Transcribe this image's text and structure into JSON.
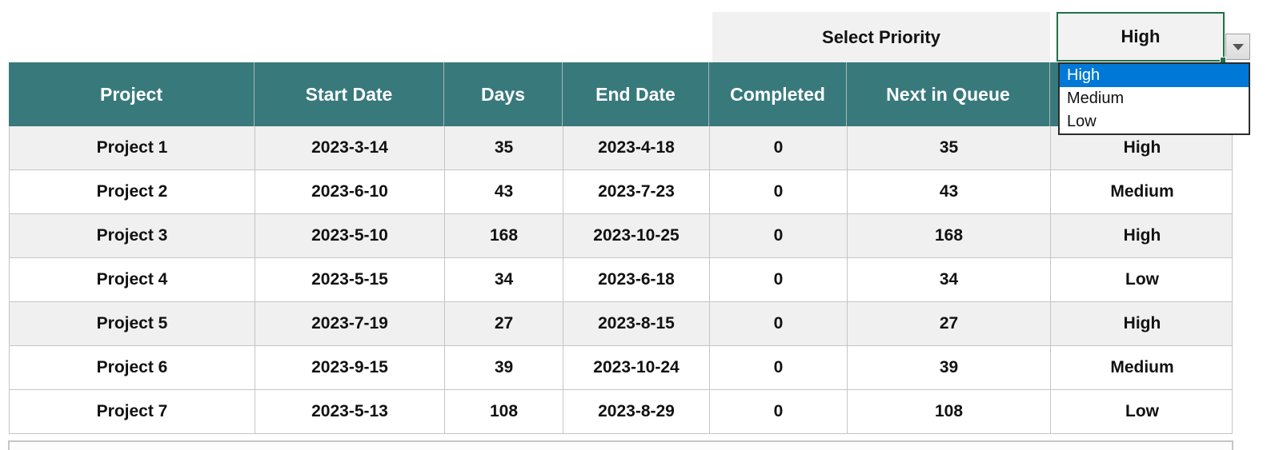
{
  "priority_selector": {
    "label": "Select Priority",
    "selected_value": "High",
    "options": [
      "High",
      "Medium",
      "Low"
    ],
    "highlighted_option": "High"
  },
  "table": {
    "columns": [
      "Project",
      "Start Date",
      "Days",
      "End Date",
      "Completed",
      "Next in Queue",
      ""
    ],
    "rows": [
      [
        "Project 1",
        "2023-3-14",
        "35",
        "2023-4-18",
        "0",
        "35",
        "High"
      ],
      [
        "Project 2",
        "2023-6-10",
        "43",
        "2023-7-23",
        "0",
        "43",
        "Medium"
      ],
      [
        "Project 3",
        "2023-5-10",
        "168",
        "2023-10-25",
        "0",
        "168",
        "High"
      ],
      [
        "Project 4",
        "2023-5-15",
        "34",
        "2023-6-18",
        "0",
        "34",
        "Low"
      ],
      [
        "Project 5",
        "2023-7-19",
        "27",
        "2023-8-15",
        "0",
        "27",
        "High"
      ],
      [
        "Project 6",
        "2023-9-15",
        "39",
        "2023-10-24",
        "0",
        "39",
        "Medium"
      ],
      [
        "Project 7",
        "2023-5-13",
        "108",
        "2023-8-29",
        "0",
        "108",
        "Low"
      ]
    ],
    "gray_striped_row_indexes": [
      0,
      2,
      4
    ]
  },
  "colors": {
    "header_bg": "#38797c",
    "row_alt_bg": "#f0f0f0",
    "label_bg": "#f1f1f1",
    "selection_border": "#1f7246",
    "dropdown_highlight": "#0078d7",
    "grid_line": "#c5c5c5"
  }
}
